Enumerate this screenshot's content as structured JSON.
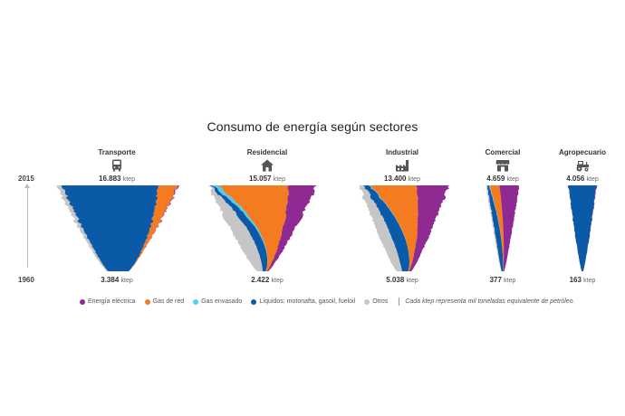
{
  "title": "Consumo de energía según sectores",
  "years": {
    "start": "1960",
    "end": "2015"
  },
  "unit": "ktep",
  "legend": {
    "items": [
      {
        "label": "Energía eléctrica",
        "color": "#8e2a91"
      },
      {
        "label": "Gas de red",
        "color": "#f47b20"
      },
      {
        "label": "Gas envasado",
        "color": "#4fd0f0"
      },
      {
        "label": "Líquidos: motonafta, gasoil, fueloil",
        "color": "#0a5aa8"
      },
      {
        "label": "Otros",
        "color": "#c6c6c6"
      }
    ],
    "note": "Cada ktep representa mil toneladas equivalente de petróleo."
  },
  "chart_data": [
    {
      "type": "area",
      "name": "Transporte",
      "icon": "bus-icon",
      "total_2015": "16.883",
      "total_1960": "3.384",
      "x": [
        1960,
        2015
      ],
      "shares_2015": {
        "Energía eléctrica": 0.01,
        "Gas de red": 0.16,
        "Gas envasado": 0.0,
        "Líquidos: motonafta, gasoil, fueloil": 0.79,
        "Otros": 0.04
      },
      "shares_1960": {
        "Energía eléctrica": 0.0,
        "Gas de red": 0.0,
        "Gas envasado": 0.0,
        "Líquidos: motonafta, gasoil, fueloil": 0.94,
        "Otros": 0.06
      }
    },
    {
      "type": "area",
      "name": "Residencial",
      "icon": "house-icon",
      "total_2015": "15.057",
      "total_1960": "2.422",
      "x": [
        1960,
        2015
      ],
      "shares_2015": {
        "Energía eléctrica": 0.26,
        "Gas de red": 0.66,
        "Gas envasado": 0.05,
        "Líquidos: motonafta, gasoil, fueloil": 0.02,
        "Otros": 0.01
      },
      "shares_1960": {
        "Energía eléctrica": 0.12,
        "Gas de red": 0.12,
        "Gas envasado": 0.0,
        "Líquidos: motonafta, gasoil, fueloil": 0.26,
        "Otros": 0.5
      }
    },
    {
      "type": "area",
      "name": "Industrial",
      "icon": "factory-icon",
      "total_2015": "13.400",
      "total_1960": "5.038",
      "x": [
        1960,
        2015
      ],
      "shares_2015": {
        "Energía eléctrica": 0.36,
        "Gas de red": 0.52,
        "Gas envasado": 0.01,
        "Líquidos: motonafta, gasoil, fueloil": 0.06,
        "Otros": 0.05
      },
      "shares_1960": {
        "Energía eléctrica": 0.16,
        "Gas de red": 0.06,
        "Gas envasado": 0.0,
        "Líquidos: motonafta, gasoil, fueloil": 0.4,
        "Otros": 0.38
      }
    },
    {
      "type": "area",
      "name": "Comercial",
      "icon": "store-icon",
      "total_2015": "4.659",
      "total_1960": "377",
      "x": [
        1960,
        2015
      ],
      "shares_2015": {
        "Energía eléctrica": 0.6,
        "Gas de red": 0.3,
        "Gas envasado": 0.02,
        "Líquidos: motonafta, gasoil, fueloil": 0.05,
        "Otros": 0.03
      },
      "shares_1960": {
        "Energía eléctrica": 0.35,
        "Gas de red": 0.05,
        "Gas envasado": 0.0,
        "Líquidos: motonafta, gasoil, fueloil": 0.5,
        "Otros": 0.1
      }
    },
    {
      "type": "area",
      "name": "Agropecuario",
      "icon": "tractor-icon",
      "total_2015": "4.056",
      "total_1960": "163",
      "x": [
        1960,
        2015
      ],
      "shares_2015": {
        "Energía eléctrica": 0.02,
        "Gas de red": 0.0,
        "Gas envasado": 0.0,
        "Líquidos: motonafta, gasoil, fueloil": 0.97,
        "Otros": 0.01
      },
      "shares_1960": {
        "Energía eléctrica": 0.0,
        "Gas de red": 0.0,
        "Gas envasado": 0.0,
        "Líquidos: motonafta, gasoil, fueloil": 1.0,
        "Otros": 0.0
      }
    }
  ]
}
